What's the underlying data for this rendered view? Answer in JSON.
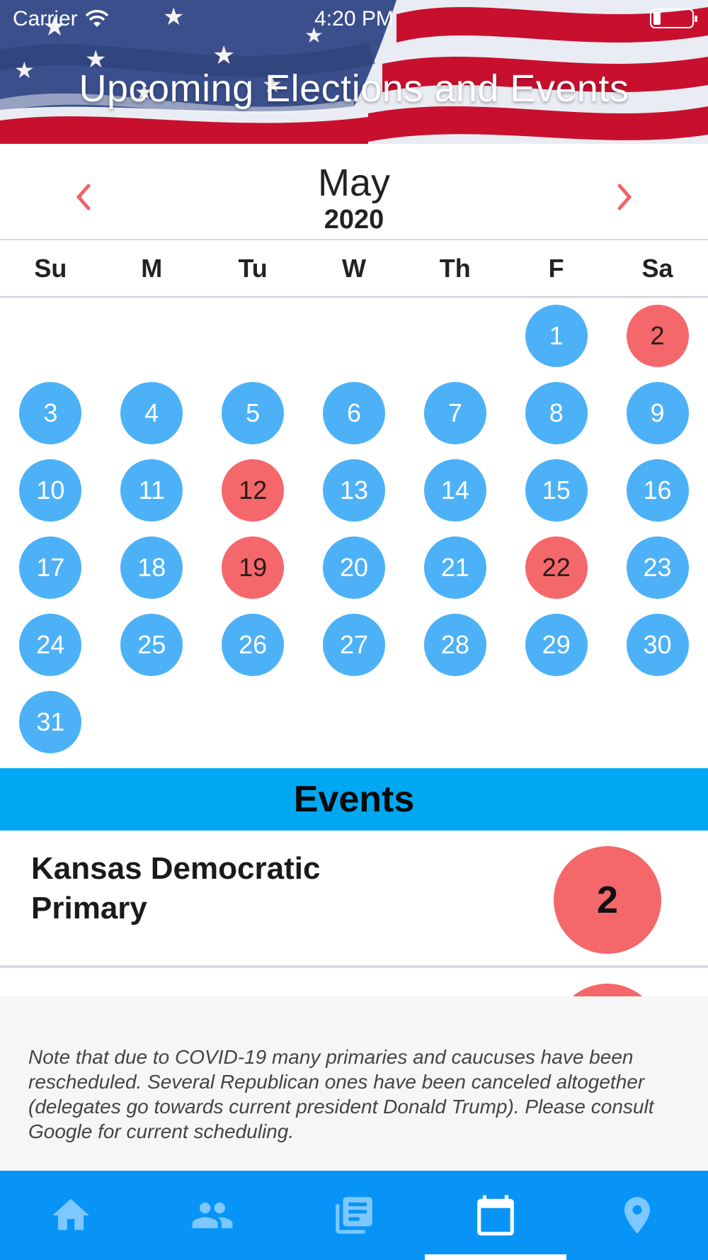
{
  "status_bar": {
    "carrier": "Carrier",
    "time": "4:20 PM"
  },
  "header": {
    "title": "Upcoming Elections and Events"
  },
  "calendar": {
    "month": "May",
    "year": "2020",
    "weekdays": [
      "Su",
      "M",
      "Tu",
      "W",
      "Th",
      "F",
      "Sa"
    ],
    "first_weekday_index": 5,
    "days_in_month": 31,
    "event_days": [
      2,
      12,
      19,
      22
    ],
    "colors": {
      "normal_day": "#4db1f7",
      "event_day": "#f4676b",
      "nav_arrow": "#f0646a"
    }
  },
  "events_section": {
    "title": "Events",
    "items": [
      {
        "name": "Kansas Democratic Primary",
        "day": "2"
      }
    ],
    "colors": {
      "bar": "#00a8f2"
    }
  },
  "note": {
    "text": "Note that due to COVID-19 many primaries and caucuses have been rescheduled. Several Republican ones have been canceled altogether (delegates go towards current president Donald Trump). Please consult Google for current scheduling."
  },
  "tab_bar": {
    "tabs": [
      {
        "icon": "home-icon",
        "selected": false
      },
      {
        "icon": "people-icon",
        "selected": false
      },
      {
        "icon": "news-icon",
        "selected": false
      },
      {
        "icon": "calendar-icon",
        "selected": true
      },
      {
        "icon": "location-pin-icon",
        "selected": false
      }
    ],
    "colors": {
      "background": "#0894f7",
      "icon": "#7cc8ff",
      "selected_icon": "#ffffff"
    }
  }
}
